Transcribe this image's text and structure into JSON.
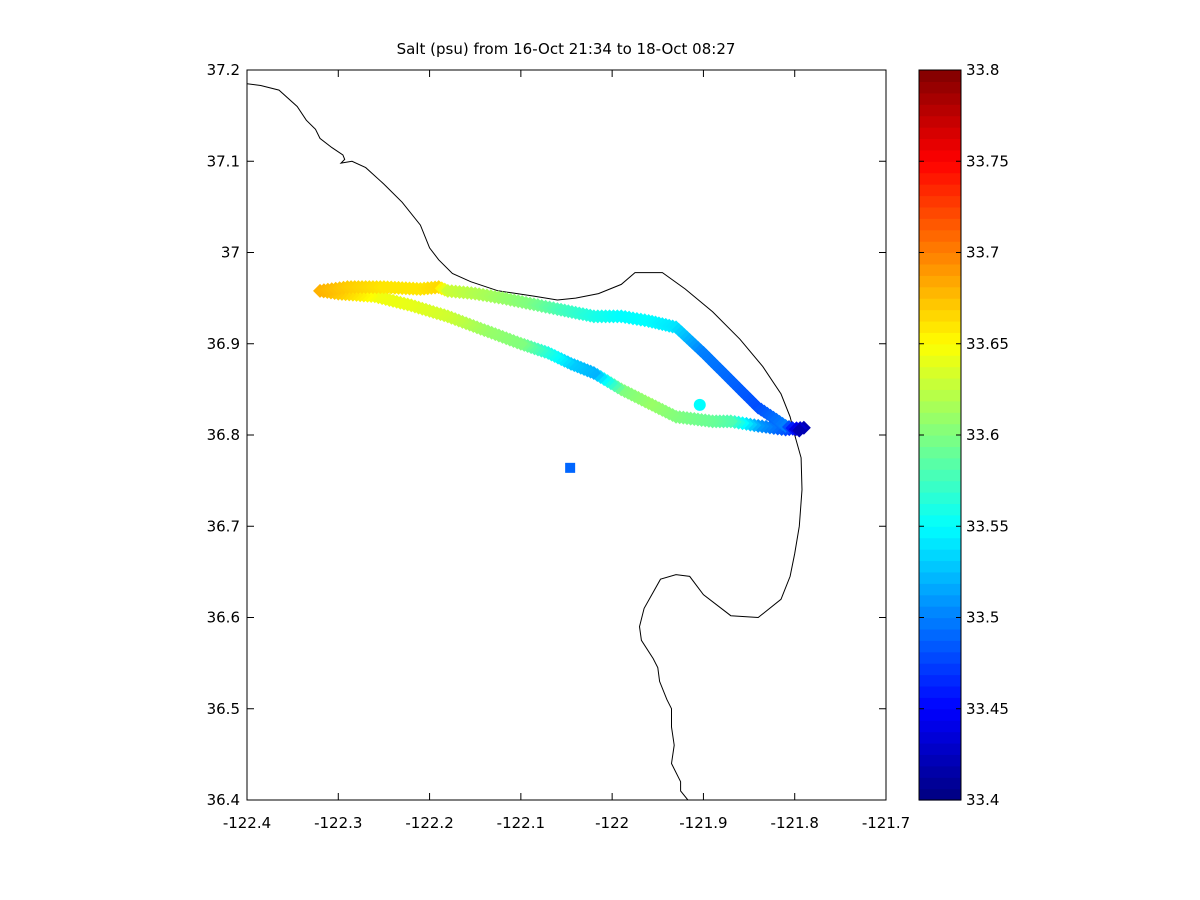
{
  "chart_data": {
    "type": "scatter",
    "title": "Salt (psu) from 16-Oct 21:34 to 18-Oct 08:27",
    "xlabel": "",
    "ylabel": "",
    "xlim": [
      -122.4,
      -121.7
    ],
    "ylim": [
      36.4,
      37.2
    ],
    "x_ticks": [
      -122.4,
      -122.3,
      -122.2,
      -122.1,
      -122.0,
      -121.9,
      -121.8,
      -121.7
    ],
    "x_tick_labels": [
      "-122.4",
      "-122.3",
      "-122.2",
      "-122.1",
      "-122",
      "-121.9",
      "-121.8",
      "-121.7"
    ],
    "y_ticks": [
      36.4,
      36.5,
      36.6,
      36.7,
      36.8,
      36.9,
      37.0,
      37.1,
      37.2
    ],
    "y_tick_labels": [
      "36.4",
      "36.5",
      "36.6",
      "36.7",
      "36.8",
      "36.9",
      "37",
      "37.1",
      "37.2"
    ],
    "grid": false,
    "colorbar": {
      "colormap": "jet",
      "clim": [
        33.4,
        33.8
      ],
      "ticks": [
        33.4,
        33.45,
        33.5,
        33.55,
        33.6,
        33.65,
        33.7,
        33.75,
        33.8
      ],
      "tick_labels": [
        "33.4",
        "33.45",
        "33.5",
        "33.55",
        "33.6",
        "33.65",
        "33.7",
        "33.75",
        "33.8"
      ]
    },
    "track": {
      "marker": "diamond",
      "lon": [
        -121.79,
        -121.81,
        -121.84,
        -121.87,
        -121.89,
        -121.93,
        -121.96,
        -121.99,
        -122.02,
        -122.045,
        -122.07,
        -122.1,
        -122.14,
        -122.18,
        -122.22,
        -122.26,
        -122.3,
        -122.32,
        -122.29,
        -122.25,
        -122.21,
        -122.19,
        -122.18,
        -122.15,
        -122.12,
        -122.09,
        -122.06,
        -122.02,
        -121.99,
        -121.96,
        -121.93,
        -121.9,
        -121.87,
        -121.84,
        -121.81,
        -121.795
      ],
      "lat": [
        36.808,
        36.806,
        36.81,
        36.815,
        36.815,
        36.82,
        36.835,
        36.85,
        36.868,
        36.878,
        36.89,
        36.9,
        36.915,
        36.93,
        36.942,
        36.952,
        36.955,
        36.958,
        36.962,
        36.962,
        36.96,
        36.962,
        36.958,
        36.955,
        36.95,
        36.944,
        36.938,
        36.93,
        36.93,
        36.925,
        36.918,
        36.89,
        36.86,
        36.83,
        36.81,
        36.805
      ],
      "salt": [
        33.42,
        33.48,
        33.51,
        33.58,
        33.59,
        33.6,
        33.61,
        33.6,
        33.52,
        33.53,
        33.56,
        33.6,
        33.61,
        33.63,
        33.64,
        33.645,
        33.67,
        33.68,
        33.67,
        33.66,
        33.66,
        33.665,
        33.63,
        33.62,
        33.61,
        33.6,
        33.58,
        33.56,
        33.55,
        33.55,
        33.54,
        33.5,
        33.49,
        33.48,
        33.5,
        33.42
      ]
    },
    "stations": [
      {
        "marker": "circle",
        "lon": -121.904,
        "lat": 36.833,
        "salt": 33.55
      },
      {
        "marker": "square",
        "lon": -122.046,
        "lat": 36.764,
        "salt": 33.49
      }
    ],
    "coastline": {
      "lon": [
        -122.4,
        -122.385,
        -122.365,
        -122.345,
        -122.335,
        -122.325,
        -122.32,
        -122.307,
        -122.295,
        -122.293,
        -122.297,
        -122.285,
        -122.27,
        -122.25,
        -122.23,
        -122.21,
        -122.2,
        -122.19,
        -122.175,
        -122.155,
        -122.125,
        -122.085,
        -122.06,
        -122.04,
        -122.015,
        -121.99,
        -121.975,
        -121.945,
        -121.92,
        -121.89,
        -121.86,
        -121.835,
        -121.815,
        -121.805,
        -121.8,
        -121.793,
        -121.792,
        -121.795,
        -121.8,
        -121.805,
        -121.815,
        -121.84,
        -121.87,
        -121.9,
        -121.915,
        -121.93,
        -121.947,
        -121.965,
        -121.97,
        -121.968,
        -121.955,
        -121.95,
        -121.948,
        -121.94,
        -121.935,
        -121.935,
        -121.932,
        -121.935,
        -121.925,
        -121.925,
        -121.917
      ],
      "lat": [
        37.185,
        37.183,
        37.178,
        37.16,
        37.145,
        37.135,
        37.125,
        37.115,
        37.107,
        37.102,
        37.098,
        37.1,
        37.093,
        37.075,
        37.055,
        37.03,
        37.005,
        36.992,
        36.977,
        36.968,
        36.958,
        36.952,
        36.948,
        36.95,
        36.955,
        36.965,
        36.978,
        36.978,
        36.96,
        36.935,
        36.905,
        36.875,
        36.845,
        36.82,
        36.8,
        36.775,
        36.74,
        36.7,
        36.67,
        36.645,
        36.62,
        36.6,
        36.602,
        36.625,
        36.645,
        36.647,
        36.642,
        36.61,
        36.59,
        36.575,
        36.555,
        36.545,
        36.53,
        36.51,
        36.5,
        36.48,
        36.46,
        36.44,
        36.42,
        36.41,
        36.4
      ]
    }
  }
}
